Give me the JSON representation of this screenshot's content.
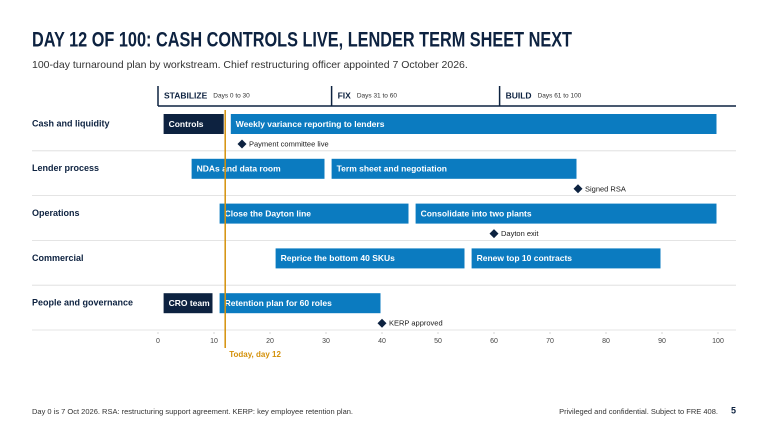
{
  "chart_data": {
    "type": "gantt",
    "title": "DAY 12 OF 100: CASH CONTROLS LIVE, LENDER TERM SHEET NEXT",
    "subtitle": "100-day turnaround plan by workstream. Chief restructuring officer appointed 7 October 2026.",
    "phases": [
      {
        "name": "STABILIZE",
        "label": "Days 0 to 30",
        "start": 0,
        "end": 30
      },
      {
        "name": "FIX",
        "label": "Days 31 to 60",
        "start": 31,
        "end": 60
      },
      {
        "name": "BUILD",
        "label": "Days 61 to 100",
        "start": 61,
        "end": 100
      }
    ],
    "rows": [
      {
        "name": "Cash and liquidity",
        "tasks": [
          {
            "name": "Controls",
            "start": 1,
            "end": 12,
            "color": "#0d2240"
          },
          {
            "name": "Weekly variance reporting to lenders",
            "start": 13,
            "end": 100,
            "color": "#0b7bc0"
          }
        ],
        "milestones": [
          {
            "name": "Payment committee live",
            "value": 15
          }
        ]
      },
      {
        "name": "Lender process",
        "tasks": [
          {
            "name": "NDAs and data room",
            "start": 6,
            "end": 30,
            "color": "#0b7bc0"
          },
          {
            "name": "Term sheet and negotiation",
            "start": 31,
            "end": 75,
            "color": "#0b7bc0"
          }
        ],
        "milestones": [
          {
            "name": "Signed RSA",
            "value": 75
          }
        ]
      },
      {
        "name": "Operations",
        "tasks": [
          {
            "name": "Close the Dayton line",
            "start": 11,
            "end": 45,
            "color": "#0b7bc0"
          },
          {
            "name": "Consolidate into two plants",
            "start": 46,
            "end": 100,
            "color": "#0b7bc0"
          }
        ],
        "milestones": [
          {
            "name": "Dayton exit",
            "value": 60
          }
        ]
      },
      {
        "name": "Commercial",
        "tasks": [
          {
            "name": "Reprice the bottom 40 SKUs",
            "start": 21,
            "end": 55,
            "color": "#0b7bc0"
          },
          {
            "name": "Renew top 10 contracts",
            "start": 56,
            "end": 90,
            "color": "#0b7bc0"
          }
        ],
        "milestones": []
      },
      {
        "name": "People and governance",
        "tasks": [
          {
            "name": "CRO team",
            "start": 1,
            "end": 10,
            "color": "#0d2240"
          },
          {
            "name": "Retention plan for 60 roles",
            "start": 11,
            "end": 40,
            "color": "#0b7bc0"
          }
        ],
        "milestones": [
          {
            "name": "KERP approved",
            "value": 40
          }
        ]
      }
    ],
    "xlim": [
      0,
      100
    ],
    "xticks": [
      0,
      10,
      20,
      30,
      40,
      50,
      60,
      70,
      80,
      90,
      100
    ],
    "today": {
      "label": "Today, day 12",
      "value": 12,
      "color": "#d4910a"
    },
    "footnote": "Day 0 is 7 Oct 2026. RSA: restructuring support agreement. KERP: key employee retention plan.",
    "confidentiality": "Privileged and confidential. Subject to FRE 408.",
    "page_number": 5
  }
}
